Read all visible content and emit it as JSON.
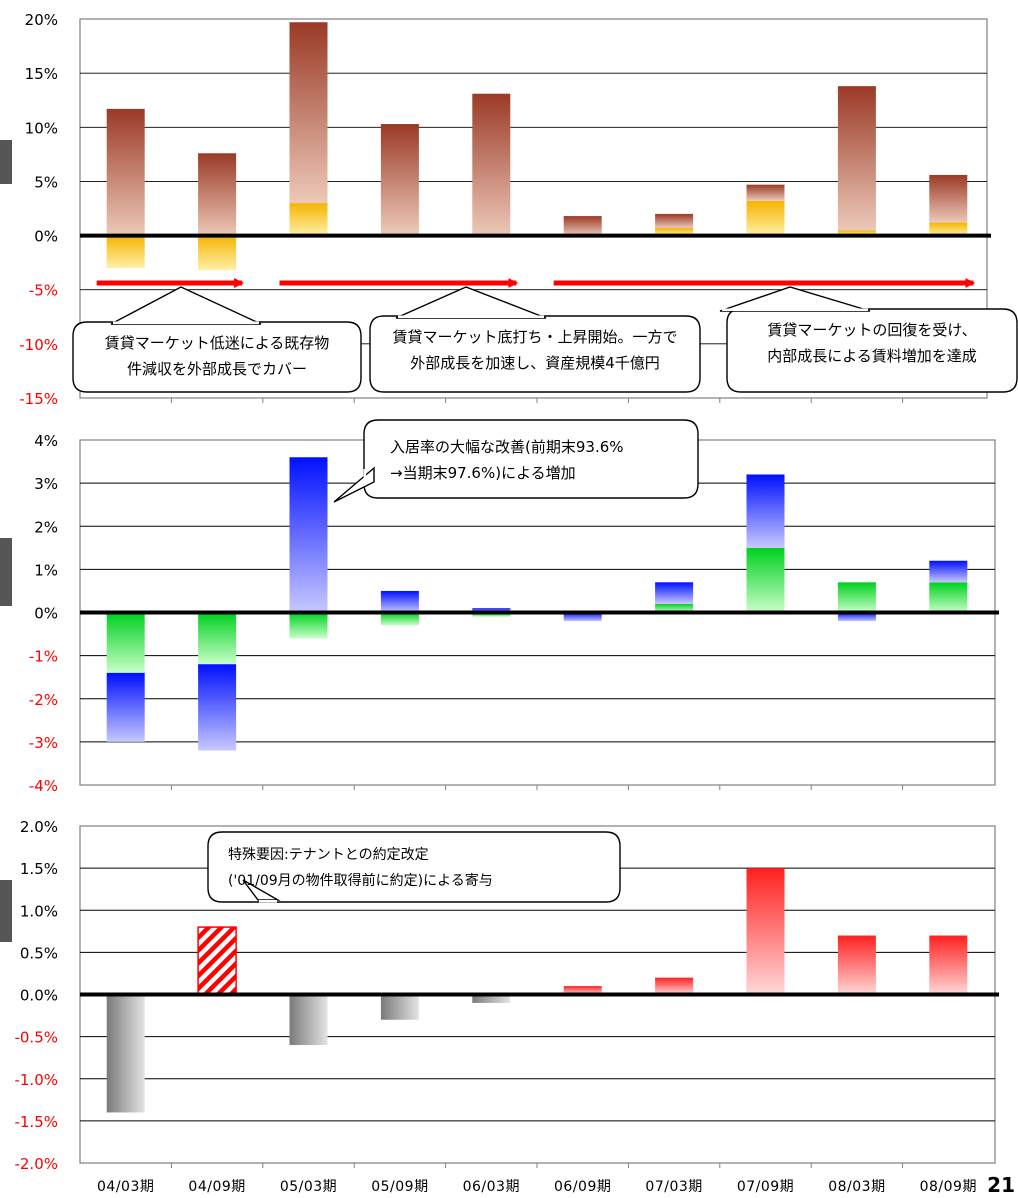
{
  "page_number": "21",
  "colors": {
    "negative_tick": "#ff0000",
    "arrow": "#ff0000",
    "baseline": "#000000"
  },
  "chart_data": [
    {
      "type": "bar",
      "stacked": true,
      "categories": [
        "04/03期",
        "04/09期",
        "05/03期",
        "05/09期",
        "06/03期",
        "06/09期",
        "07/03期",
        "07/09期",
        "08/03期",
        "08/09期"
      ],
      "ylim": [
        -15,
        20
      ],
      "yticks": [
        {
          "value": 20,
          "label": "20%"
        },
        {
          "value": 15,
          "label": "15%"
        },
        {
          "value": 10,
          "label": "10%"
        },
        {
          "value": 5,
          "label": "5%"
        },
        {
          "value": 0,
          "label": "0%"
        },
        {
          "value": -5,
          "label": "-5%"
        },
        {
          "value": -10,
          "label": "-10%"
        },
        {
          "value": -15,
          "label": "-15%"
        }
      ],
      "series": [
        {
          "color": "#f5b800",
          "values": [
            -3.0,
            -3.2,
            3.0,
            0.2,
            0.0,
            0.0,
            0.7,
            3.2,
            0.5,
            1.2
          ]
        },
        {
          "color": "#a0402a",
          "values": [
            11.7,
            7.6,
            16.7,
            10.1,
            13.1,
            1.8,
            1.3,
            1.5,
            13.3,
            4.4
          ]
        }
      ],
      "phases": [
        {
          "from": 0,
          "to": 1,
          "text": [
            "賃貸マーケット低迷による既存物",
            "件減収を外部成長でカバー"
          ]
        },
        {
          "from": 2,
          "to": 4,
          "text": [
            "賃貸マーケット底打ち・上昇開始。一方で",
            "外部成長を加速し、資産規模4千億円"
          ]
        },
        {
          "from": 5,
          "to": 9,
          "text": [
            "賃貸マーケットの回復を受け、",
            "内部成長による賃料増加を達成"
          ]
        }
      ]
    },
    {
      "type": "bar",
      "stacked": true,
      "categories": [
        "04/03期",
        "04/09期",
        "05/03期",
        "05/09期",
        "06/03期",
        "06/09期",
        "07/03期",
        "07/09期",
        "08/03期",
        "08/09期"
      ],
      "ylim": [
        -4,
        4
      ],
      "yticks": [
        {
          "value": 4,
          "label": "4%"
        },
        {
          "value": 3,
          "label": "3%"
        },
        {
          "value": 2,
          "label": "2%"
        },
        {
          "value": 1,
          "label": "1%"
        },
        {
          "value": 0,
          "label": "0%"
        },
        {
          "value": -1,
          "label": "-1%"
        },
        {
          "value": -2,
          "label": "-2%"
        },
        {
          "value": -3,
          "label": "-3%"
        },
        {
          "value": -4,
          "label": "-4%"
        }
      ],
      "series": [
        {
          "color": "#00cc00",
          "values": [
            -1.4,
            -1.2,
            -0.6,
            -0.3,
            -0.1,
            0.0,
            0.2,
            1.5,
            0.7,
            0.7
          ]
        },
        {
          "color": "#0000ff",
          "values": [
            -1.6,
            -2.0,
            3.6,
            0.5,
            0.1,
            -0.2,
            0.5,
            1.7,
            -0.2,
            0.5
          ]
        }
      ],
      "callout": {
        "index": 2,
        "text": [
          "入居率の大幅な改善(前期末93.6%",
          "→当期末97.6%)による増加"
        ]
      }
    },
    {
      "type": "bar",
      "categories": [
        "04/03期",
        "04/09期",
        "05/03期",
        "05/09期",
        "06/03期",
        "06/09期",
        "07/03期",
        "07/09期",
        "08/03期",
        "08/09期"
      ],
      "ylim": [
        -2,
        2
      ],
      "yticks": [
        {
          "value": 2,
          "label": "2.0%"
        },
        {
          "value": 1.5,
          "label": "1.5%"
        },
        {
          "value": 1,
          "label": "1.0%"
        },
        {
          "value": 0.5,
          "label": "0.5%"
        },
        {
          "value": 0,
          "label": "0.0%"
        },
        {
          "value": -0.5,
          "label": "-0.5%"
        },
        {
          "value": -1,
          "label": "-1.0%"
        },
        {
          "value": -1.5,
          "label": "-1.5%"
        },
        {
          "value": -2,
          "label": "-2.0%"
        }
      ],
      "series": [
        {
          "positive_color": "#ff3333",
          "negative_color": "#888888",
          "values": [
            -1.4,
            0.8,
            -0.6,
            -0.3,
            -0.1,
            0.1,
            0.2,
            1.5,
            0.7,
            0.7
          ],
          "hatched_index": 1
        }
      ],
      "callout": {
        "index": 1,
        "text": [
          "特殊要因:テナントとの約定改定",
          "('01/09月の物件取得前に約定)による寄与"
        ]
      }
    }
  ]
}
